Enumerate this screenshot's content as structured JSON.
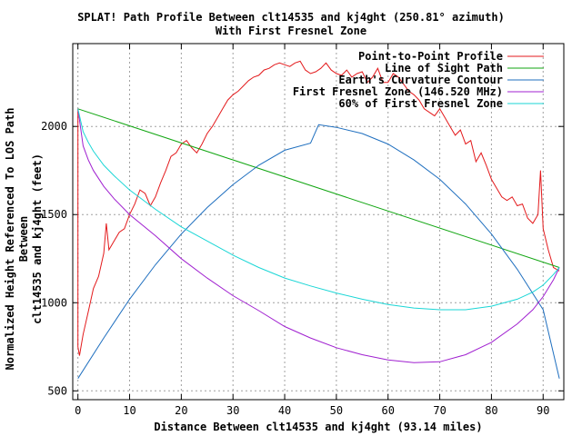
{
  "title_line1": "SPLAT! Path Profile Between clt14535 and kj4ght (250.81° azimuth)",
  "title_line2": "With First Fresnel Zone",
  "xlabel": "Distance Between clt14535 and kj4ght (93.14 miles)",
  "ylabel_line1": "Normalized Height Referenced To LOS Path Between",
  "ylabel_line2": "clt14535 and kj4ght (feet)",
  "colors": {
    "profile": "#e31a1c",
    "los": "#12a612",
    "curvature": "#1f6fbf",
    "fresnel": "#a020d0",
    "fresnel60": "#1ad6d6"
  },
  "chart_data": {
    "type": "line",
    "xlim": [
      -1,
      94
    ],
    "ylim": [
      450,
      2470
    ],
    "xticks": [
      0,
      10,
      20,
      30,
      40,
      50,
      60,
      70,
      80,
      90
    ],
    "yticks": [
      500,
      1000,
      1500,
      2000
    ],
    "grid": true,
    "legend_position": "top-right",
    "series": [
      {
        "name": "Point-to-Point Profile",
        "color": "#e31a1c",
        "x": [
          0,
          0.01,
          0.3,
          1,
          2,
          3,
          4,
          5,
          5.5,
          6,
          7,
          8,
          9,
          10,
          11,
          12,
          13,
          14,
          15,
          16,
          17,
          18,
          19,
          20,
          21,
          22,
          23,
          24,
          25,
          26,
          27,
          28,
          29,
          30,
          31,
          32,
          33,
          34,
          35,
          36,
          37,
          38,
          39,
          40,
          41,
          42,
          43,
          44,
          45,
          46,
          47,
          48,
          49,
          50,
          51,
          52,
          53,
          54,
          55,
          56,
          57,
          58,
          59,
          60,
          61,
          62,
          63,
          64,
          65,
          66,
          67,
          68,
          69,
          70,
          71,
          72,
          73,
          74,
          75,
          76,
          77,
          78,
          79,
          80,
          81,
          82,
          83,
          84,
          85,
          86,
          87,
          88,
          89,
          89.5,
          90,
          91,
          92,
          93.14
        ],
        "y": [
          2100,
          750,
          700,
          820,
          950,
          1080,
          1150,
          1280,
          1450,
          1300,
          1350,
          1400,
          1420,
          1500,
          1560,
          1640,
          1620,
          1550,
          1600,
          1680,
          1750,
          1830,
          1850,
          1900,
          1920,
          1880,
          1850,
          1900,
          1960,
          2000,
          2050,
          2100,
          2150,
          2180,
          2200,
          2230,
          2260,
          2280,
          2290,
          2320,
          2330,
          2350,
          2360,
          2350,
          2340,
          2360,
          2370,
          2320,
          2300,
          2310,
          2330,
          2360,
          2320,
          2300,
          2290,
          2320,
          2280,
          2300,
          2310,
          2250,
          2280,
          2330,
          2250,
          2250,
          2300,
          2280,
          2240,
          2200,
          2180,
          2150,
          2100,
          2080,
          2060,
          2100,
          2050,
          2000,
          1950,
          1980,
          1900,
          1920,
          1800,
          1850,
          1780,
          1700,
          1650,
          1600,
          1580,
          1600,
          1550,
          1560,
          1480,
          1450,
          1500,
          1750,
          1420,
          1300,
          1200,
          1180
        ]
      },
      {
        "name": "Line of Sight Path",
        "color": "#12a612",
        "x": [
          0,
          93.14
        ],
        "y": [
          2100,
          1200
        ]
      },
      {
        "name": "Earth's Curvature Contour",
        "color": "#1f6fbf",
        "x": [
          0,
          5,
          10,
          15,
          20,
          25,
          30,
          35,
          40,
          45,
          46.57,
          50,
          55,
          60,
          65,
          70,
          75,
          80,
          85,
          90,
          93.14
        ],
        "y": [
          570,
          800,
          1020,
          1215,
          1390,
          1540,
          1670,
          1780,
          1865,
          1905,
          2010,
          1995,
          1960,
          1900,
          1810,
          1700,
          1560,
          1390,
          1190,
          960,
          570
        ]
      },
      {
        "name": "First Fresnel Zone (146.520 MHz)",
        "color": "#a020d0",
        "x": [
          0,
          1,
          2,
          3,
          5,
          7,
          10,
          15,
          20,
          25,
          30,
          35,
          40,
          45,
          50,
          55,
          60,
          65,
          70,
          75,
          80,
          85,
          88,
          90,
          92,
          93.14
        ],
        "y": [
          2100,
          1890,
          1810,
          1750,
          1660,
          1590,
          1500,
          1380,
          1250,
          1140,
          1040,
          955,
          865,
          800,
          745,
          705,
          675,
          660,
          665,
          705,
          775,
          880,
          960,
          1035,
          1130,
          1200
        ]
      },
      {
        "name": "60% of First Fresnel Zone",
        "color": "#1ad6d6",
        "x": [
          0,
          1,
          2,
          3,
          5,
          7,
          10,
          15,
          20,
          25,
          30,
          35,
          40,
          45,
          50,
          55,
          60,
          65,
          70,
          75,
          80,
          85,
          88,
          90,
          92,
          93.14
        ],
        "y": [
          2100,
          1970,
          1910,
          1860,
          1780,
          1720,
          1640,
          1530,
          1430,
          1350,
          1270,
          1200,
          1140,
          1095,
          1055,
          1020,
          990,
          970,
          960,
          960,
          980,
          1020,
          1060,
          1100,
          1160,
          1200
        ]
      }
    ]
  }
}
